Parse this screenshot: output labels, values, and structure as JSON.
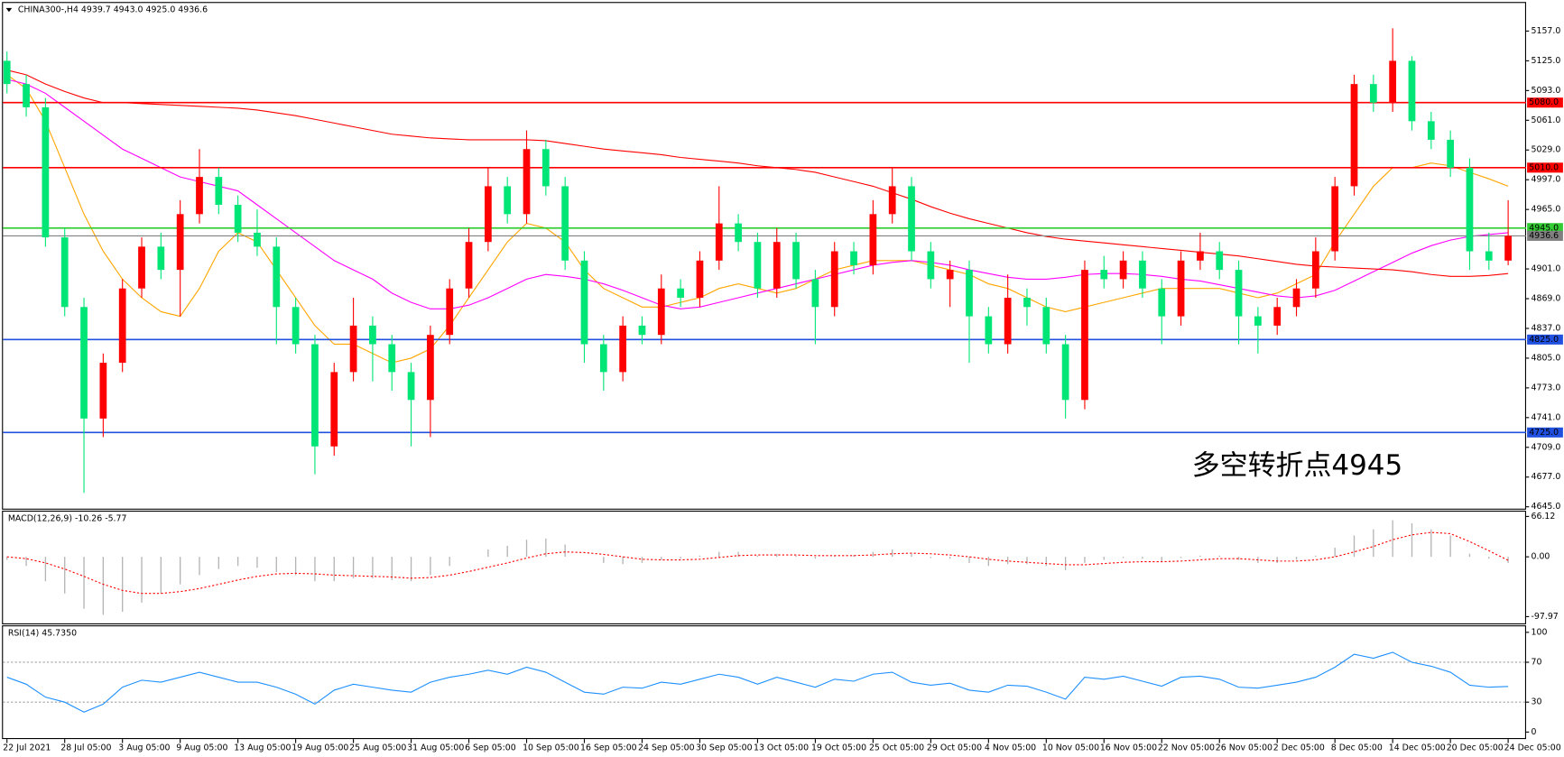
{
  "chart_data": [
    {
      "type": "candlestick",
      "title": "CHINA300-,H4  4939.7 4943.0 4925.0 4936.6",
      "annotation": "多空转折点4945",
      "categories": [
        "22 Jul 2021",
        null,
        null,
        "28 Jul 05:00",
        null,
        null,
        "3 Aug 05:00",
        null,
        null,
        "9 Aug 05:00",
        null,
        null,
        "13 Aug 05:00",
        null,
        null,
        "19 Aug 05:00",
        null,
        null,
        "25 Aug 05:00",
        null,
        null,
        "31 Aug 05:00",
        null,
        null,
        "6 Sep 05:00",
        null,
        null,
        "10 Sep 05:00",
        null,
        null,
        "16 Sep 05:00",
        null,
        null,
        "24 Sep 05:00",
        null,
        null,
        "30 Sep 05:00",
        null,
        null,
        "13 Oct 05:00",
        null,
        null,
        "19 Oct 05:00",
        null,
        null,
        "25 Oct 05:00",
        null,
        null,
        "29 Oct 05:00",
        null,
        null,
        "4 Nov 05:00",
        null,
        null,
        "10 Nov 05:00",
        null,
        null,
        "16 Nov 05:00",
        null,
        null,
        "22 Nov 05:00",
        null,
        null,
        "26 Nov 05:00",
        null,
        null,
        "2 Dec 05:00",
        null,
        null,
        "8 Dec 05:00",
        null,
        null,
        "14 Dec 05:00",
        null,
        null,
        "20 Dec 05:00",
        null,
        null,
        "24 Dec 05:00"
      ],
      "ohlc": [
        [
          5125,
          5135,
          5090,
          5100
        ],
        [
          5100,
          5110,
          5065,
          5075
        ],
        [
          5075,
          5085,
          4925,
          4935
        ],
        [
          4935,
          4945,
          4850,
          4860
        ],
        [
          4860,
          4870,
          4660,
          4740
        ],
        [
          4740,
          4810,
          4720,
          4800
        ],
        [
          4800,
          4890,
          4790,
          4880
        ],
        [
          4880,
          4935,
          4870,
          4925
        ],
        [
          4925,
          4940,
          4890,
          4900
        ],
        [
          4900,
          4975,
          4850,
          4960
        ],
        [
          4960,
          5030,
          4950,
          5000
        ],
        [
          5000,
          5010,
          4960,
          4970
        ],
        [
          4970,
          4980,
          4930,
          4940
        ],
        [
          4940,
          4965,
          4915,
          4925
        ],
        [
          4925,
          4935,
          4820,
          4860
        ],
        [
          4860,
          4870,
          4810,
          4820
        ],
        [
          4820,
          4830,
          4680,
          4710
        ],
        [
          4710,
          4800,
          4700,
          4790
        ],
        [
          4790,
          4870,
          4780,
          4840
        ],
        [
          4840,
          4850,
          4780,
          4820
        ],
        [
          4820,
          4830,
          4770,
          4790
        ],
        [
          4790,
          4800,
          4710,
          4760
        ],
        [
          4760,
          4840,
          4720,
          4830
        ],
        [
          4830,
          4890,
          4820,
          4880
        ],
        [
          4880,
          4945,
          4870,
          4930
        ],
        [
          4930,
          5010,
          4920,
          4990
        ],
        [
          4990,
          5000,
          4950,
          4960
        ],
        [
          4960,
          5050,
          4950,
          5030
        ],
        [
          5030,
          5040,
          4980,
          4990
        ],
        [
          4990,
          5000,
          4900,
          4910
        ],
        [
          4910,
          4920,
          4800,
          4820
        ],
        [
          4820,
          4830,
          4770,
          4790
        ],
        [
          4790,
          4850,
          4780,
          4840
        ],
        [
          4840,
          4850,
          4820,
          4830
        ],
        [
          4830,
          4895,
          4820,
          4880
        ],
        [
          4880,
          4890,
          4860,
          4870
        ],
        [
          4870,
          4920,
          4860,
          4910
        ],
        [
          4910,
          4990,
          4900,
          4950
        ],
        [
          4950,
          4960,
          4920,
          4930
        ],
        [
          4930,
          4940,
          4870,
          4880
        ],
        [
          4880,
          4945,
          4870,
          4930
        ],
        [
          4930,
          4940,
          4880,
          4890
        ],
        [
          4890,
          4900,
          4820,
          4860
        ],
        [
          4860,
          4930,
          4850,
          4920
        ],
        [
          4920,
          4930,
          4895,
          4905
        ],
        [
          4905,
          4975,
          4895,
          4960
        ],
        [
          4960,
          5010,
          4950,
          4990
        ],
        [
          4990,
          5000,
          4910,
          4920
        ],
        [
          4920,
          4930,
          4880,
          4890
        ],
        [
          4890,
          4910,
          4860,
          4900
        ],
        [
          4900,
          4910,
          4800,
          4850
        ],
        [
          4850,
          4860,
          4810,
          4820
        ],
        [
          4820,
          4895,
          4810,
          4870
        ],
        [
          4870,
          4880,
          4840,
          4860
        ],
        [
          4860,
          4870,
          4810,
          4820
        ],
        [
          4820,
          4830,
          4740,
          4760
        ],
        [
          4760,
          4910,
          4750,
          4900
        ],
        [
          4900,
          4915,
          4880,
          4890
        ],
        [
          4890,
          4920,
          4880,
          4910
        ],
        [
          4910,
          4920,
          4870,
          4880
        ],
        [
          4880,
          4890,
          4820,
          4850
        ],
        [
          4850,
          4920,
          4840,
          4910
        ],
        [
          4910,
          4940,
          4900,
          4920
        ],
        [
          4920,
          4930,
          4890,
          4900
        ],
        [
          4900,
          4910,
          4820,
          4850
        ],
        [
          4850,
          4860,
          4810,
          4840
        ],
        [
          4840,
          4870,
          4830,
          4860
        ],
        [
          4860,
          4890,
          4850,
          4880
        ],
        [
          4880,
          4935,
          4870,
          4920
        ],
        [
          4920,
          5000,
          4910,
          4990
        ],
        [
          4990,
          5110,
          4980,
          5100
        ],
        [
          5100,
          5110,
          5070,
          5080
        ],
        [
          5080,
          5160,
          5070,
          5125
        ],
        [
          5125,
          5130,
          5050,
          5060
        ],
        [
          5060,
          5070,
          5030,
          5040
        ],
        [
          5040,
          5050,
          5000,
          5010
        ],
        [
          5010,
          5020,
          4900,
          4920
        ],
        [
          4920,
          4940,
          4900,
          4910
        ],
        [
          4910,
          4975,
          4905,
          4936.6
        ]
      ],
      "up_color": "#ff0000",
      "down_color": "#00e676",
      "lines": [
        {
          "color": "#ffa500",
          "values": [
            5110,
            5095,
            5060,
            5010,
            4960,
            4920,
            4890,
            4870,
            4855,
            4850,
            4880,
            4920,
            4940,
            4930,
            4900,
            4870,
            4840,
            4820,
            4820,
            4810,
            4800,
            4805,
            4815,
            4840,
            4870,
            4900,
            4930,
            4950,
            4945,
            4930,
            4900,
            4880,
            4870,
            4860,
            4860,
            4865,
            4870,
            4880,
            4885,
            4880,
            4875,
            4880,
            4890,
            4900,
            4905,
            4910,
            4910,
            4910,
            4905,
            4900,
            4895,
            4885,
            4880,
            4870,
            4860,
            4855,
            4860,
            4865,
            4870,
            4875,
            4880,
            4880,
            4880,
            4880,
            4875,
            4870,
            4875,
            4885,
            4895,
            4930,
            4960,
            4990,
            5010,
            5010,
            5015,
            5012,
            5005,
            4998,
            4990
          ]
        },
        {
          "color": "#ff00ff",
          "values": [
            5105,
            5100,
            5090,
            5075,
            5060,
            5045,
            5030,
            5020,
            5010,
            5000,
            4995,
            4990,
            4985,
            4970,
            4955,
            4940,
            4925,
            4910,
            4900,
            4890,
            4875,
            4865,
            4858,
            4858,
            4862,
            4870,
            4880,
            4890,
            4895,
            4893,
            4890,
            4885,
            4878,
            4870,
            4862,
            4858,
            4860,
            4865,
            4870,
            4875,
            4880,
            4885,
            4890,
            4895,
            4900,
            4905,
            4908,
            4910,
            4908,
            4905,
            4900,
            4896,
            4892,
            4890,
            4890,
            4892,
            4895,
            4896,
            4896,
            4895,
            4893,
            4890,
            4888,
            4884,
            4880,
            4876,
            4872,
            4870,
            4872,
            4878,
            4888,
            4898,
            4908,
            4918,
            4926,
            4932,
            4936,
            4938,
            4940
          ]
        },
        {
          "color": "#ff0000",
          "values": [
            5115,
            5110,
            5100,
            5092,
            5085,
            5080,
            5080,
            5079,
            5078,
            5077,
            5076,
            5075,
            5074,
            5072,
            5069,
            5066,
            5062,
            5058,
            5054,
            5050,
            5046,
            5044,
            5042,
            5041,
            5040,
            5040,
            5040,
            5040,
            5039,
            5036,
            5033,
            5030,
            5028,
            5026,
            5024,
            5021,
            5019,
            5017,
            5015,
            5012,
            5010,
            5008,
            5005,
            5000,
            4995,
            4990,
            4983,
            4976,
            4968,
            4961,
            4955,
            4950,
            4945,
            4940,
            4936,
            4933,
            4931,
            4929,
            4927,
            4925,
            4923,
            4921,
            4919,
            4917,
            4915,
            4912,
            4909,
            4906,
            4904,
            4903,
            4902,
            4901,
            4900,
            4898,
            4895,
            4893,
            4893,
            4894,
            4896
          ]
        }
      ],
      "levels": [
        {
          "value": 5080,
          "label": "5080.0",
          "color": "#ff0000"
        },
        {
          "value": 5010,
          "label": "5010.0",
          "color": "#ff0000"
        },
        {
          "value": 4945,
          "label": "4945.0",
          "color": "#32cd32"
        },
        {
          "value": 4825,
          "label": "4825.0",
          "color": "#2050e0"
        },
        {
          "value": 4725,
          "label": "4725.0",
          "color": "#2050e0"
        }
      ],
      "current": {
        "value": 4936.6,
        "label": "4936.6",
        "color": "#808080"
      },
      "ylim": [
        4643,
        5184
      ],
      "yticks": [
        {
          "value": 5157,
          "label": "5157.0"
        },
        {
          "value": 5125,
          "label": "5125.0"
        },
        {
          "value": 5093,
          "label": "5093.0"
        },
        {
          "value": 5061,
          "label": "5061.0"
        },
        {
          "value": 5029,
          "label": "5029.0"
        },
        {
          "value": 4997,
          "label": "4997.0"
        },
        {
          "value": 4965,
          "label": "4965.0"
        },
        {
          "value": 4901,
          "label": "4901.0"
        },
        {
          "value": 4869,
          "label": "4869.0"
        },
        {
          "value": 4837,
          "label": "4837.0"
        },
        {
          "value": 4805,
          "label": "4805.0"
        },
        {
          "value": 4773,
          "label": "4773.0"
        },
        {
          "value": 4741,
          "label": "4741.0"
        },
        {
          "value": 4709,
          "label": "4709.0"
        },
        {
          "value": 4677,
          "label": "4677.0"
        },
        {
          "value": 4645,
          "label": "4645.0"
        }
      ]
    },
    {
      "type": "macd",
      "title": "MACD(12,26,9) -10.26 -5.77",
      "values": [
        -5,
        -15,
        -40,
        -60,
        -85,
        -95,
        -90,
        -75,
        -60,
        -45,
        -30,
        -20,
        -15,
        -18,
        -25,
        -30,
        -40,
        -40,
        -35,
        -35,
        -38,
        -40,
        -30,
        -15,
        0,
        12,
        18,
        28,
        30,
        20,
        0,
        -10,
        -12,
        -10,
        -5,
        -3,
        2,
        8,
        8,
        2,
        5,
        2,
        -3,
        2,
        3,
        8,
        12,
        5,
        -2,
        -3,
        -10,
        -15,
        -12,
        -12,
        -15,
        -22,
        -10,
        -5,
        -2,
        -3,
        -8,
        -2,
        2,
        2,
        -5,
        -10,
        -10,
        -5,
        2,
        15,
        35,
        45,
        60,
        55,
        45,
        35,
        5,
        -3,
        -10.26
      ],
      "signal": [
        0,
        -3,
        -10,
        -20,
        -32,
        -45,
        -55,
        -60,
        -60,
        -57,
        -52,
        -45,
        -38,
        -32,
        -28,
        -27,
        -28,
        -30,
        -31,
        -32,
        -33,
        -35,
        -34,
        -30,
        -24,
        -17,
        -10,
        -2,
        5,
        8,
        7,
        4,
        0,
        -4,
        -5,
        -5,
        -4,
        -1,
        2,
        3,
        3,
        3,
        2,
        2,
        2,
        3,
        5,
        6,
        5,
        3,
        0,
        -4,
        -7,
        -9,
        -11,
        -13,
        -13,
        -11,
        -9,
        -8,
        -8,
        -7,
        -5,
        -3,
        -3,
        -5,
        -7,
        -7,
        -5,
        0,
        8,
        17,
        28,
        36,
        40,
        38,
        25,
        10,
        -5.77
      ],
      "bar_color": "#b4b4b4",
      "signal_color": "#ff0000",
      "ylim": [
        -109,
        74
      ],
      "yticks": [
        {
          "value": 66.12,
          "label": "66.12"
        },
        {
          "value": 0,
          "label": "0.00"
        },
        {
          "value": -97.97,
          "label": "-97.97"
        }
      ]
    },
    {
      "type": "rsi",
      "title": "RSI(14) 45.7350",
      "values": [
        55,
        48,
        35,
        30,
        20,
        28,
        45,
        52,
        50,
        55,
        60,
        55,
        50,
        50,
        45,
        38,
        28,
        42,
        48,
        45,
        42,
        40,
        50,
        55,
        58,
        62,
        58,
        65,
        60,
        50,
        40,
        38,
        45,
        44,
        50,
        48,
        53,
        58,
        55,
        48,
        55,
        50,
        45,
        53,
        51,
        58,
        60,
        50,
        47,
        49,
        42,
        40,
        47,
        46,
        40,
        33,
        55,
        53,
        56,
        51,
        46,
        55,
        56,
        53,
        45,
        44,
        47,
        50,
        55,
        65,
        78,
        74,
        80,
        70,
        66,
        60,
        47,
        45,
        45.735
      ],
      "color": "#1e90ff",
      "levels": [
        70,
        30
      ],
      "ylim": [
        -6,
        106
      ],
      "yticks": [
        100,
        70,
        30,
        0
      ]
    }
  ]
}
